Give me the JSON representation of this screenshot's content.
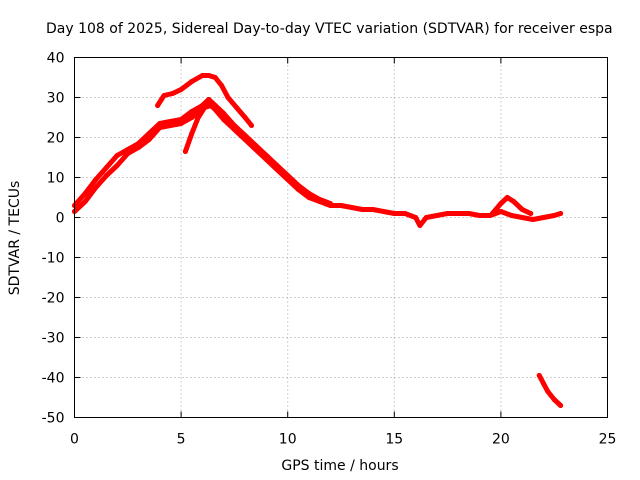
{
  "chart_data": {
    "type": "line",
    "title": "Day 108 of 2025, Sidereal Day-to-day VTEC variation (SDTVAR) for receiver espa",
    "xlabel": "GPS time / hours",
    "ylabel": "SDTVAR / TECUs",
    "xlim": [
      0,
      25
    ],
    "ylim": [
      -50,
      40
    ],
    "xticks": [
      0,
      5,
      10,
      15,
      20,
      25
    ],
    "yticks": [
      -50,
      -40,
      -30,
      -20,
      -10,
      0,
      10,
      20,
      30,
      40
    ],
    "grid": true,
    "color": "#ff0000",
    "series": [
      {
        "name": "trace-main-lower",
        "x": [
          0,
          0.5,
          1,
          1.5,
          2,
          2.5,
          3,
          3.5,
          4,
          4.5,
          5,
          5.5,
          6,
          6.3,
          6.6,
          7,
          7.5,
          8,
          8.5,
          9,
          9.5,
          10,
          10.5,
          11,
          11.5,
          12,
          12.5,
          13,
          13.5,
          14,
          14.5,
          15,
          15.5,
          16,
          16.2,
          16.5,
          17,
          17.5,
          18,
          18.5,
          19,
          19.5,
          20,
          20.5,
          21,
          21.5,
          22,
          22.5,
          22.8
        ],
        "y": [
          1.5,
          4,
          7.5,
          10.5,
          13,
          16,
          17.5,
          19.5,
          22.5,
          23,
          23.5,
          25,
          27,
          28.5,
          27,
          24.5,
          22,
          19.5,
          17,
          14.5,
          12,
          9.5,
          7,
          5,
          4,
          3,
          3,
          2.5,
          2,
          2,
          1.5,
          1,
          1,
          0,
          -2,
          0,
          0.5,
          1,
          1,
          1,
          0.5,
          0.5,
          1.5,
          0.5,
          0,
          -0.5,
          0,
          0.5,
          1
        ]
      },
      {
        "name": "trace-main-upper",
        "x": [
          0,
          0.5,
          1,
          1.5,
          2,
          2.5,
          3,
          3.5,
          4,
          4.5,
          5,
          5.5,
          6,
          6.3,
          6.6,
          7,
          7.5,
          8,
          8.5,
          9,
          9.5,
          10,
          10.5,
          11,
          11.5,
          12
        ],
        "y": [
          3,
          6,
          9.5,
          12.5,
          15.5,
          17,
          18.5,
          21,
          23.5,
          24,
          24.5,
          26.5,
          28,
          29.5,
          28,
          26,
          23,
          20.5,
          18,
          15.5,
          13,
          10.5,
          8,
          6,
          4.5,
          3.5
        ]
      },
      {
        "name": "trace-upper-hump",
        "x": [
          3.9,
          4.2,
          4.6,
          5,
          5.5,
          6,
          6.3,
          6.6,
          6.9,
          7.2,
          7.6,
          8,
          8.3
        ],
        "y": [
          28,
          30.5,
          31,
          32,
          34,
          35.5,
          35.5,
          35,
          33,
          30,
          27.5,
          25,
          23
        ]
      },
      {
        "name": "trace-dip-5h",
        "x": [
          5.2,
          5.5,
          5.8,
          6.1,
          6.4
        ],
        "y": [
          16.5,
          21,
          25,
          27.5,
          28
        ]
      },
      {
        "name": "trace-bump-20h",
        "x": [
          19.6,
          20,
          20.3,
          20.6,
          21,
          21.4
        ],
        "y": [
          1,
          3.5,
          5,
          4,
          2,
          1
        ]
      },
      {
        "name": "trace-late-drop",
        "x": [
          21.8,
          22,
          22.2,
          22.5,
          22.8
        ],
        "y": [
          -39.5,
          -41.5,
          -43.5,
          -45.5,
          -47
        ]
      }
    ]
  }
}
